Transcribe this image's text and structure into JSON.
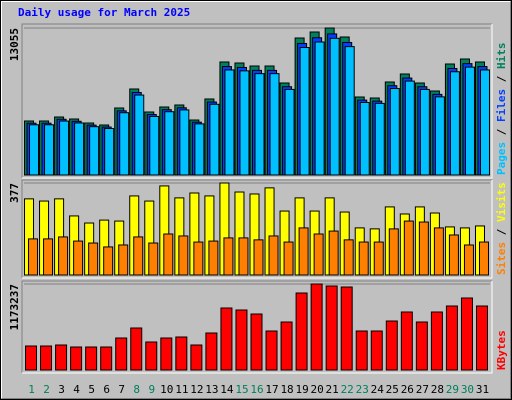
{
  "chart_data": [
    {
      "type": "bar",
      "title": "Daily usage for March 2025",
      "ylim": [
        0,
        13055
      ],
      "yticks": [
        13055
      ],
      "separator": "/",
      "series": [
        {
          "name": "Hits",
          "color": "#00805c",
          "values": [
            4796,
            4796,
            5151,
            4973,
            4618,
            4440,
            5950,
            7638,
            5595,
            6039,
            6217,
            4884,
            6750,
            10036,
            9947,
            9680,
            9680,
            8171,
            12167,
            12700,
            13055,
            12256,
            6927,
            6838,
            8260,
            8970,
            8171,
            7460,
            9858,
            10302,
            10036
          ]
        },
        {
          "name": "Files",
          "color": "#0040ff",
          "values": [
            4600,
            4600,
            4950,
            4770,
            4430,
            4260,
            5700,
            7330,
            5370,
            5800,
            5970,
            4690,
            6480,
            9630,
            9550,
            9290,
            9290,
            7840,
            11680,
            12190,
            12530,
            11770,
            6650,
            6560,
            7930,
            8610,
            7840,
            7160,
            9460,
            9890,
            9630
          ]
        },
        {
          "name": "Pages",
          "color": "#00c0ff",
          "values": [
            4460,
            4460,
            4790,
            4620,
            4290,
            4130,
            5530,
            7100,
            5200,
            5620,
            5780,
            4540,
            6280,
            9330,
            9250,
            9000,
            9000,
            7600,
            11320,
            11810,
            12140,
            11400,
            6440,
            6360,
            7680,
            8340,
            7600,
            6940,
            9170,
            9580,
            9330
          ]
        }
      ]
    },
    {
      "type": "bar",
      "ylim": [
        0,
        377
      ],
      "yticks": [
        377
      ],
      "separator": "/",
      "series": [
        {
          "name": "Visits",
          "color": "#ffff00",
          "values": [
            312,
            303,
            312,
            242,
            213,
            225,
            221,
            324,
            303,
            365,
            316,
            336,
            324,
            377,
            340,
            332,
            357,
            262,
            316,
            262,
            316,
            258,
            193,
            189,
            279,
            250,
            279,
            254,
            197,
            193,
            201
          ]
        },
        {
          "name": "Sites",
          "color": "#ff8000",
          "values": [
            148,
            148,
            156,
            139,
            131,
            115,
            123,
            156,
            131,
            168,
            160,
            135,
            139,
            152,
            152,
            144,
            160,
            135,
            193,
            168,
            180,
            144,
            135,
            135,
            189,
            221,
            217,
            193,
            164,
            123,
            135
          ]
        }
      ]
    },
    {
      "type": "bar",
      "ylim": [
        0,
        1173237
      ],
      "yticks": [
        1173237
      ],
      "categories": [
        "1",
        "2",
        "3",
        "4",
        "5",
        "6",
        "7",
        "8",
        "9",
        "10",
        "11",
        "12",
        "13",
        "14",
        "15",
        "16",
        "17",
        "18",
        "19",
        "20",
        "21",
        "22",
        "23",
        "24",
        "25",
        "26",
        "27",
        "28",
        "29",
        "30",
        "31"
      ],
      "label_colors": [
        "#00805c",
        "#00805c",
        "#000000",
        "#000000",
        "#000000",
        "#000000",
        "#000000",
        "#00805c",
        "#00805c",
        "#000000",
        "#000000",
        "#000000",
        "#000000",
        "#000000",
        "#00805c",
        "#00805c",
        "#000000",
        "#000000",
        "#000000",
        "#000000",
        "#000000",
        "#00805c",
        "#00805c",
        "#000000",
        "#000000",
        "#000000",
        "#000000",
        "#000000",
        "#00805c",
        "#00805c",
        "#000000"
      ],
      "series": [
        {
          "name": "KBytes",
          "color": "#ff0000",
          "values": [
            327410,
            327410,
            341050,
            313770,
            313770,
            313770,
            436540,
            572960,
            381980,
            436540,
            450190,
            341050,
            504760,
            845800,
            818520,
            763950,
            532040,
            654820,
            1050430,
            1173237,
            1145930,
            1132290,
            532040,
            532040,
            668460,
            791240,
            654820,
            791240,
            873090,
            982220,
            873090
          ]
        }
      ]
    }
  ]
}
